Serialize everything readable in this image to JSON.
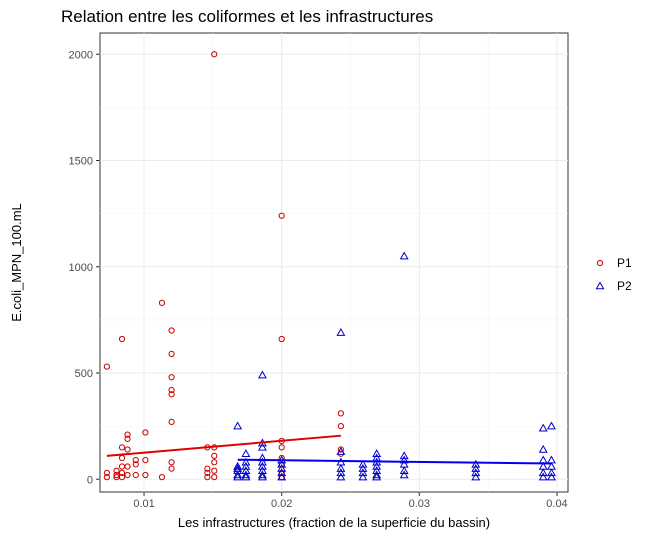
{
  "chart_data": {
    "type": "scatter",
    "title": "Relation entre les coliformes et les infrastructures",
    "xlabel": "Les infrastructures (fraction de la superficie du bassin)",
    "ylabel": "E.coli_MPN_100.mL",
    "xlim": [
      0.0068,
      0.0408
    ],
    "ylim": [
      -60,
      2100
    ],
    "xticks": [
      0.01,
      0.02,
      0.03,
      0.04
    ],
    "xtick_labels": [
      "0.01",
      "0.02",
      "0.03",
      "0.04"
    ],
    "yticks": [
      0,
      500,
      1000,
      1500,
      2000
    ],
    "ytick_labels": [
      "0",
      "500",
      "1000",
      "1500",
      "2000"
    ],
    "grid": true,
    "legend_position": "right",
    "series": [
      {
        "name": "P1",
        "marker": "circle",
        "color": "#cc0000",
        "points": [
          [
            0.0073,
            530
          ],
          [
            0.0073,
            30
          ],
          [
            0.0073,
            10
          ],
          [
            0.008,
            40
          ],
          [
            0.008,
            20
          ],
          [
            0.008,
            10
          ],
          [
            0.0084,
            660
          ],
          [
            0.0084,
            150
          ],
          [
            0.0084,
            100
          ],
          [
            0.0084,
            60
          ],
          [
            0.0084,
            30
          ],
          [
            0.0084,
            10
          ],
          [
            0.0088,
            210
          ],
          [
            0.0088,
            190
          ],
          [
            0.0088,
            140
          ],
          [
            0.0088,
            60
          ],
          [
            0.0088,
            20
          ],
          [
            0.0094,
            90
          ],
          [
            0.0094,
            70
          ],
          [
            0.0094,
            20
          ],
          [
            0.0101,
            220
          ],
          [
            0.0101,
            90
          ],
          [
            0.0101,
            20
          ],
          [
            0.0113,
            830
          ],
          [
            0.0113,
            10
          ],
          [
            0.012,
            700
          ],
          [
            0.012,
            590
          ],
          [
            0.012,
            480
          ],
          [
            0.012,
            420
          ],
          [
            0.012,
            400
          ],
          [
            0.012,
            270
          ],
          [
            0.012,
            80
          ],
          [
            0.012,
            50
          ],
          [
            0.0146,
            150
          ],
          [
            0.0146,
            50
          ],
          [
            0.0146,
            30
          ],
          [
            0.0146,
            10
          ],
          [
            0.0151,
            2000
          ],
          [
            0.0151,
            150
          ],
          [
            0.0151,
            110
          ],
          [
            0.0151,
            80
          ],
          [
            0.0151,
            40
          ],
          [
            0.0151,
            10
          ],
          [
            0.02,
            1240
          ],
          [
            0.02,
            660
          ],
          [
            0.02,
            180
          ],
          [
            0.02,
            150
          ],
          [
            0.02,
            100
          ],
          [
            0.02,
            70
          ],
          [
            0.02,
            30
          ],
          [
            0.02,
            10
          ],
          [
            0.0243,
            310
          ],
          [
            0.0243,
            250
          ],
          [
            0.0243,
            140
          ],
          [
            0.0243,
            120
          ]
        ],
        "fit": {
          "x": [
            0.0073,
            0.0243
          ],
          "y": [
            110,
            205
          ]
        }
      },
      {
        "name": "P2",
        "marker": "triangle",
        "color": "#0000cc",
        "points": [
          [
            0.0168,
            250
          ],
          [
            0.0168,
            60
          ],
          [
            0.0168,
            50
          ],
          [
            0.0168,
            40
          ],
          [
            0.0168,
            20
          ],
          [
            0.0168,
            10
          ],
          [
            0.0174,
            120
          ],
          [
            0.0174,
            80
          ],
          [
            0.0174,
            60
          ],
          [
            0.0174,
            40
          ],
          [
            0.0174,
            20
          ],
          [
            0.0174,
            10
          ],
          [
            0.0186,
            490
          ],
          [
            0.0186,
            170
          ],
          [
            0.0186,
            150
          ],
          [
            0.0186,
            100
          ],
          [
            0.0186,
            80
          ],
          [
            0.0186,
            60
          ],
          [
            0.0186,
            40
          ],
          [
            0.0186,
            20
          ],
          [
            0.0186,
            10
          ],
          [
            0.02,
            90
          ],
          [
            0.02,
            70
          ],
          [
            0.02,
            50
          ],
          [
            0.02,
            30
          ],
          [
            0.02,
            10
          ],
          [
            0.0243,
            690
          ],
          [
            0.0243,
            130
          ],
          [
            0.0243,
            80
          ],
          [
            0.0243,
            50
          ],
          [
            0.0243,
            30
          ],
          [
            0.0243,
            10
          ],
          [
            0.0259,
            70
          ],
          [
            0.0259,
            50
          ],
          [
            0.0259,
            30
          ],
          [
            0.0259,
            10
          ],
          [
            0.0269,
            120
          ],
          [
            0.0269,
            100
          ],
          [
            0.0269,
            80
          ],
          [
            0.0269,
            60
          ],
          [
            0.0269,
            40
          ],
          [
            0.0269,
            20
          ],
          [
            0.0269,
            10
          ],
          [
            0.0289,
            1050
          ],
          [
            0.0289,
            110
          ],
          [
            0.0289,
            90
          ],
          [
            0.0289,
            70
          ],
          [
            0.0289,
            40
          ],
          [
            0.0289,
            20
          ],
          [
            0.0341,
            70
          ],
          [
            0.0341,
            50
          ],
          [
            0.0341,
            30
          ],
          [
            0.0341,
            10
          ],
          [
            0.039,
            240
          ],
          [
            0.039,
            140
          ],
          [
            0.039,
            90
          ],
          [
            0.039,
            60
          ],
          [
            0.039,
            30
          ],
          [
            0.039,
            10
          ],
          [
            0.0396,
            250
          ],
          [
            0.0396,
            90
          ],
          [
            0.0396,
            60
          ],
          [
            0.0396,
            30
          ],
          [
            0.0396,
            10
          ]
        ],
        "fit": {
          "x": [
            0.0168,
            0.0396
          ],
          "y": [
            92,
            74
          ]
        }
      }
    ]
  }
}
